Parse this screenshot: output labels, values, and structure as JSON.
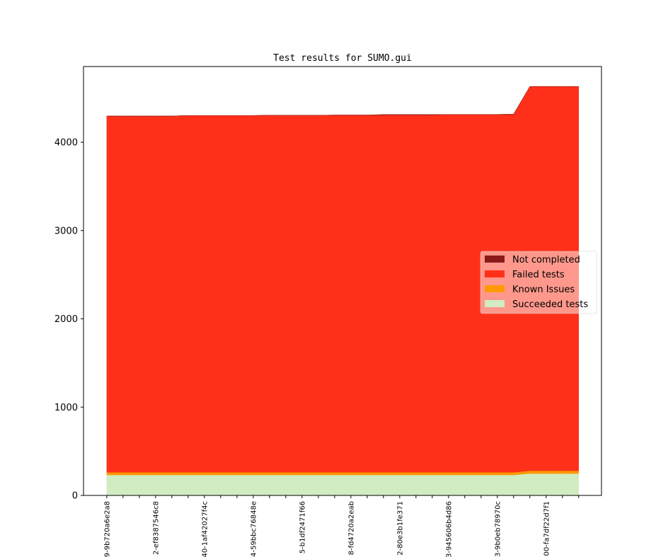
{
  "chart_data": {
    "type": "stackedarea",
    "title": "Test results for SUMO.gui",
    "categories": [
      "9-9b720a6e2a8",
      null,
      null,
      "2-ef8387546c8",
      null,
      null,
      "40-1af42027f4c",
      null,
      null,
      "4-59bbc76848e",
      null,
      null,
      "5-b1df2471f66",
      null,
      null,
      "8-fd4720a2eab",
      null,
      null,
      "2-80e3b1fe371",
      null,
      null,
      "3-945606b4d86",
      null,
      null,
      "3-9b0eb78970c",
      null,
      null,
      "00-fa7df22d7f1",
      null,
      null
    ],
    "series": [
      {
        "name": "Succeeded tests",
        "color": "#d0ecc0",
        "values": [
          232,
          232,
          232,
          232,
          232,
          232,
          232,
          232,
          232,
          232,
          232,
          232,
          232,
          232,
          232,
          232,
          232,
          232,
          232,
          232,
          232,
          232,
          232,
          232,
          232,
          232,
          248,
          248,
          248,
          248
        ]
      },
      {
        "name": "Known Issues",
        "color": "#ff9900",
        "values": [
          30,
          30,
          30,
          30,
          30,
          30,
          30,
          30,
          30,
          30,
          30,
          30,
          30,
          30,
          30,
          30,
          30,
          30,
          30,
          30,
          30,
          30,
          30,
          30,
          30,
          30,
          32,
          32,
          32,
          32
        ]
      },
      {
        "name": "Failed tests",
        "color": "#ff3019",
        "values": [
          4035,
          4035,
          4035,
          4035,
          4035,
          4041,
          4041,
          4041,
          4041,
          4041,
          4044,
          4044,
          4044,
          4044,
          4046,
          4046,
          4046,
          4048,
          4048,
          4048,
          4048,
          4053,
          4053,
          4053,
          4053,
          4056,
          4352,
          4352,
          4352,
          4352
        ]
      },
      {
        "name": "Not completed",
        "color": "#8b1a1a",
        "values": [
          0,
          0,
          0,
          0,
          0,
          0,
          0,
          0,
          0,
          0,
          0,
          0,
          0,
          0,
          0,
          0,
          0,
          5,
          5,
          5,
          5,
          0,
          0,
          0,
          0,
          0,
          0,
          0,
          0,
          0
        ]
      }
    ],
    "xlim": [
      -1.43,
      30.4
    ],
    "ylim": [
      0,
      4858
    ],
    "yticks": [
      0,
      1000,
      2000,
      3000,
      4000
    ],
    "legend": "center right"
  }
}
